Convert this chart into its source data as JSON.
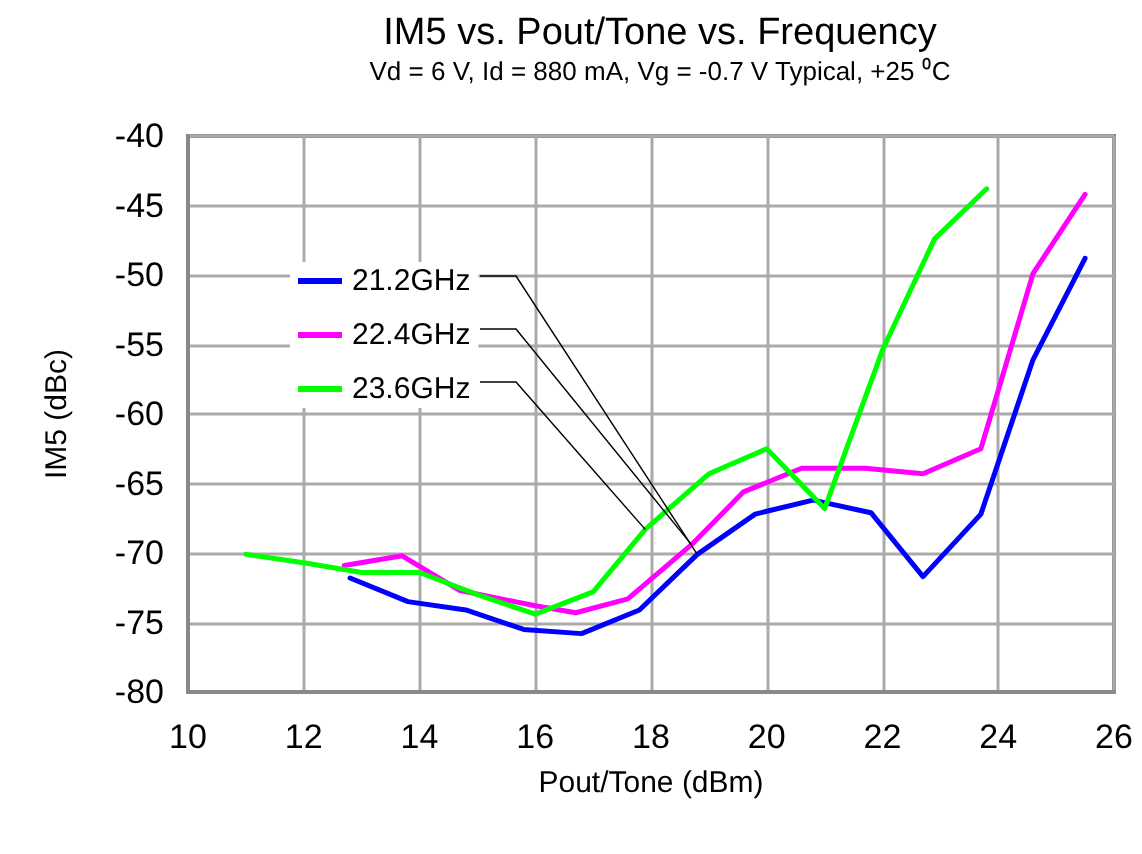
{
  "chart_data": {
    "type": "line",
    "title": "IM5 vs. Pout/Tone vs. Frequency",
    "subtitle": "Vd = 6 V, Id = 880 mA, Vg = -0.7 V Typical, +25 ⁰C",
    "xlabel": "Pout/Tone (dBm)",
    "ylabel": "IM5 (dBc)",
    "xlim": [
      10,
      26
    ],
    "xticks": [
      10,
      12,
      14,
      16,
      18,
      20,
      22,
      24,
      26
    ],
    "ylim": [
      -80,
      -40
    ],
    "yticks": [
      -80,
      -75,
      -70,
      -65,
      -60,
      -55,
      -50,
      -45,
      -40
    ],
    "grid": true,
    "legend": "top left",
    "marker": "none",
    "line_style": "solid",
    "series": [
      {
        "name": "21.2GHz",
        "color": "#0000ff",
        "x": [
          12.8,
          13.8,
          14.8,
          15.8,
          16.8,
          17.8,
          18.8,
          19.8,
          20.8,
          21.8,
          22.7,
          23.7,
          24.6,
          25.5
        ],
        "values": [
          -71.8,
          -73.5,
          -74.1,
          -75.5,
          -75.8,
          -74.1,
          -70.1,
          -67.2,
          -66.2,
          -67.1,
          -71.7,
          -67.2,
          -56.1,
          -48.8
        ]
      },
      {
        "name": "22.4GHz",
        "color": "#ff00ff",
        "x": [
          12.7,
          13.7,
          14.7,
          16.0,
          16.7,
          17.6,
          18.7,
          19.6,
          20.6,
          21.7,
          22.7,
          23.7,
          24.6,
          25.5
        ],
        "values": [
          -70.9,
          -70.2,
          -72.7,
          -73.8,
          -74.3,
          -73.3,
          -69.4,
          -65.6,
          -63.9,
          -63.9,
          -64.3,
          -62.5,
          -49.9,
          -44.2
        ]
      },
      {
        "name": "23.6GHz",
        "color": "#00ff00",
        "x": [
          11.0,
          12.0,
          13.0,
          14.0,
          15.0,
          16.0,
          17.0,
          17.9,
          19.0,
          20.0,
          21.0,
          22.0,
          22.9,
          23.8
        ],
        "values": [
          -70.1,
          -70.7,
          -71.4,
          -71.4,
          -73.0,
          -74.4,
          -72.8,
          -68.3,
          -64.3,
          -62.5,
          -66.8,
          -55.4,
          -47.4,
          -43.8
        ]
      }
    ]
  }
}
